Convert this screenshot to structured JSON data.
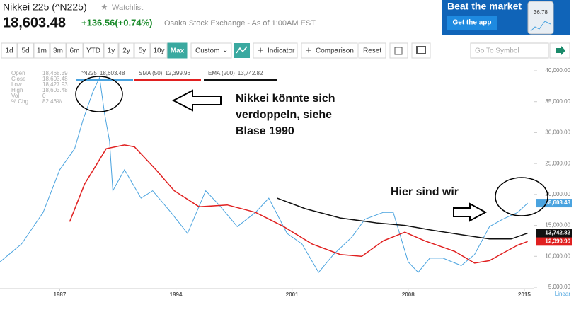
{
  "header": {
    "title": "Nikkei 225 (^N225)",
    "watchlist": "Watchlist",
    "price": "18,603.48",
    "change": "+136.56(+0.74%)",
    "exchange": "Osaka Stock Exchange - As of 1:00AM EST"
  },
  "ad": {
    "headline": "Beat the market",
    "button": "Get the app",
    "phone_value": "36.78"
  },
  "toolbar": {
    "ranges": [
      "1d",
      "5d",
      "1m",
      "3m",
      "6m",
      "YTD",
      "1y",
      "2y",
      "5y",
      "10y",
      "Max"
    ],
    "custom": "Custom",
    "indicator": "Indicator",
    "comparison": "Comparison",
    "reset": "Reset",
    "search_placeholder": "Go To Symbol"
  },
  "info": [
    {
      "label": "Open",
      "value": "18,468.39"
    },
    {
      "label": "Close",
      "value": "18,603.48"
    },
    {
      "label": "Low",
      "value": "18,427.93"
    },
    {
      "label": "High",
      "value": "18,603.48"
    },
    {
      "label": "Vol",
      "value": "0"
    },
    {
      "label": "% Chg",
      "value": "82.46%"
    }
  ],
  "annotations": {
    "bubble": [
      "Nikkei könnte sich",
      "verdoppeln, siehe",
      "Blase 1990"
    ],
    "here": "Hier sind wir"
  },
  "chart_data": {
    "type": "line",
    "scale_label": "Linear",
    "xlim": [
      1983.4,
      2015.6
    ],
    "xticks": [
      1987,
      1994,
      2001,
      2008,
      2015
    ],
    "ylim": [
      5000,
      40000
    ],
    "yticks": [
      {
        "value": 5000,
        "label": "5,000.00"
      },
      {
        "value": 10000,
        "label": "10,000.00"
      },
      {
        "value": 15000,
        "label": "15,000.00"
      },
      {
        "value": 20000,
        "label": "20,000.00"
      },
      {
        "value": 25000,
        "label": "25,000.00"
      },
      {
        "value": 30000,
        "label": "30,000.00"
      },
      {
        "value": 35000,
        "label": "35,000.00"
      },
      {
        "value": 40000,
        "label": "40,000.00"
      }
    ],
    "grid": false,
    "series": [
      {
        "name": "^N225",
        "color": "#4aa3df",
        "last_label": "18,603.48",
        "x": [
          1983.4,
          1984.7,
          1986,
          1987,
          1987.9,
          1988.4,
          1989,
          1989.4,
          1989.7,
          1990,
          1990.2,
          1990.9,
          1991.9,
          1992.6,
          1993.7,
          1994.7,
          1995.8,
          1996.6,
          1997.7,
          1998.8,
          1999.6,
          2000.7,
          2001.6,
          2002.6,
          2003.5,
          2004.6,
          2005.4,
          2006.5,
          2007.1,
          2008,
          2008.6,
          2009.3,
          2010.1,
          2011.2,
          2012,
          2012.9,
          2013.7,
          2014.6,
          2015.2
        ],
        "values": [
          9100,
          12000,
          17100,
          24000,
          27400,
          32000,
          36600,
          38900,
          33100,
          28600,
          20600,
          24000,
          19400,
          20600,
          17100,
          13700,
          20600,
          18300,
          14800,
          17100,
          19400,
          13700,
          12000,
          7400,
          10300,
          13100,
          16000,
          17100,
          17100,
          9100,
          7400,
          9700,
          9700,
          8500,
          10300,
          14800,
          16000,
          17100,
          18603.48
        ]
      },
      {
        "name": "SMA (50)",
        "color": "#e02020",
        "last_label": "12,399.96",
        "x": [
          1987.6,
          1988.5,
          1989.8,
          1990.9,
          1991.5,
          1992.8,
          1993.9,
          1995.4,
          1997.1,
          1998.8,
          2000.5,
          2002.2,
          2003.9,
          2005.2,
          2006.5,
          2007.8,
          2009,
          2010.8,
          2012,
          2012.9,
          2013.7,
          2014.6,
          2015.2
        ],
        "values": [
          15600,
          21700,
          27400,
          28000,
          27700,
          24000,
          20600,
          18000,
          18300,
          17100,
          14800,
          12000,
          10300,
          10000,
          12500,
          13900,
          12500,
          10800,
          8900,
          9300,
          10500,
          11800,
          12399.96
        ]
      },
      {
        "name": "EMA (200)",
        "color": "#111111",
        "last_label": "13,742.82",
        "x": [
          2000.1,
          2001.8,
          2003.9,
          2006.1,
          2007.8,
          2009.5,
          2011.2,
          2012.9,
          2014.2,
          2015.2
        ],
        "values": [
          19400,
          17700,
          16200,
          15400,
          15000,
          14200,
          13500,
          12800,
          12800,
          13742.82
        ]
      }
    ]
  }
}
